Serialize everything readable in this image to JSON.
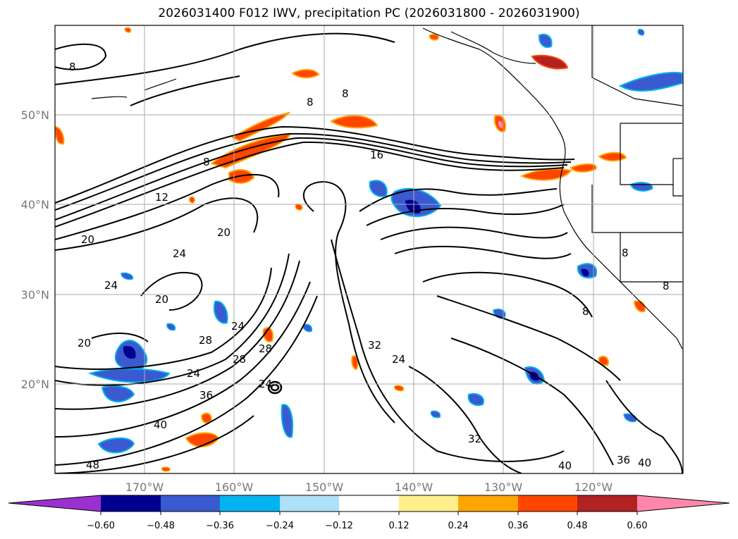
{
  "title": "2026031400 F012 IWV, precipitation PC (2026031800 - 2026031900)",
  "lat_labels": [
    "50°N",
    "40°N",
    "30°N",
    "20°N"
  ],
  "lon_labels": [
    "170°W",
    "160°W",
    "150°W",
    "140°W",
    "130°W",
    "120°W"
  ],
  "colorbar": {
    "colors": [
      "#9b30d0",
      "#000090",
      "#3a5ad0",
      "#00b4f0",
      "#aee0f8",
      "#ffffff",
      "#fff08c",
      "#ffa500",
      "#ff4500",
      "#b22222",
      "#ff88aa"
    ],
    "tick_labels": [
      "−0.60",
      "−0.48",
      "−0.36",
      "−0.24",
      "−0.12",
      "0.12",
      "0.24",
      "0.36",
      "0.48",
      "0.60"
    ]
  },
  "contour_labels": [
    "8",
    "8",
    "8",
    "8",
    "12",
    "16",
    "20",
    "20",
    "20",
    "20",
    "24",
    "24",
    "24",
    "24",
    "24",
    "28",
    "28",
    "32",
    "32",
    "36",
    "36",
    "40",
    "40",
    "40",
    "48",
    "8",
    "8",
    "8",
    "24",
    "28"
  ]
}
